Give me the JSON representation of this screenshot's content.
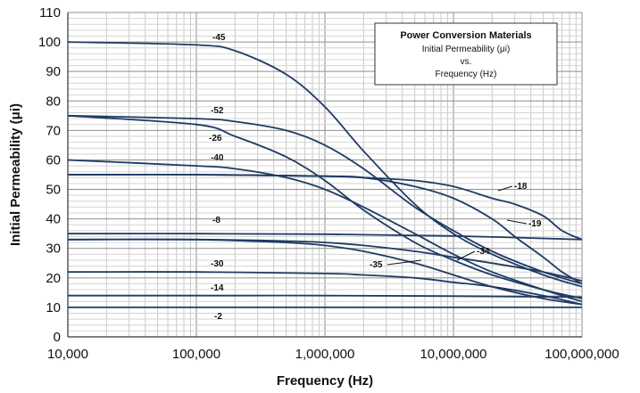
{
  "chart_data": {
    "type": "line",
    "title": "Power Conversion Materials",
    "subtitle_lines": [
      "Initial Permeability (μi)",
      "vs.",
      "Frequency (Hz)"
    ],
    "xlabel": "Frequency (Hz)",
    "ylabel": "Initial Permeability (μi)",
    "x_scale": "log",
    "xlim": [
      10000,
      100000000
    ],
    "ylim": [
      0,
      110
    ],
    "x_ticks": [
      10000,
      100000,
      1000000,
      10000000,
      100000000
    ],
    "x_tick_labels": [
      "10,000",
      "100,000",
      "1,000,000",
      "10,000,000",
      "100,000,000"
    ],
    "y_ticks": [
      0,
      10,
      20,
      30,
      40,
      50,
      60,
      70,
      80,
      90,
      100,
      110
    ],
    "y_tick_labels": [
      "0",
      "10",
      "20",
      "30",
      "40",
      "50",
      "60",
      "70",
      "80",
      "90",
      "100",
      "110"
    ],
    "grid": true,
    "legend": "top-right",
    "line_color": "#1f3b64",
    "series": [
      {
        "name": "-45",
        "x": [
          10000,
          100000,
          200000,
          500000,
          1000000,
          2000000,
          5000000,
          10000000,
          20000000,
          50000000,
          100000000
        ],
        "y": [
          100,
          99,
          97,
          89,
          78,
          63,
          45,
          35,
          28,
          21,
          17
        ]
      },
      {
        "name": "-52",
        "x": [
          10000,
          100000,
          200000,
          500000,
          1000000,
          2000000,
          5000000,
          10000000,
          20000000,
          50000000,
          100000000
        ],
        "y": [
          75,
          74,
          73,
          70,
          65,
          57,
          44,
          36,
          29,
          22,
          18
        ]
      },
      {
        "name": "-26",
        "x": [
          10000,
          100000,
          200000,
          500000,
          1000000,
          2000000,
          5000000,
          10000000,
          20000000,
          50000000,
          100000000
        ],
        "y": [
          75,
          72,
          68,
          61,
          53,
          43,
          32,
          26,
          21,
          16,
          13
        ]
      },
      {
        "name": "-40",
        "x": [
          10000,
          100000,
          200000,
          500000,
          1000000,
          2000000,
          5000000,
          10000000,
          20000000,
          50000000,
          100000000
        ],
        "y": [
          60,
          58,
          57,
          54,
          50,
          44,
          35,
          28,
          22,
          16,
          12
        ]
      },
      {
        "name": "-18",
        "x": [
          10000,
          100000,
          1000000,
          2000000,
          5000000,
          10000000,
          20000000,
          30000000,
          50000000,
          70000000,
          100000000
        ],
        "y": [
          55,
          55,
          54.5,
          54,
          53,
          51,
          47,
          45,
          41,
          36,
          33
        ]
      },
      {
        "name": "-19",
        "x": [
          10000,
          100000,
          1000000,
          2000000,
          5000000,
          10000000,
          20000000,
          30000000,
          50000000,
          70000000,
          100000000
        ],
        "y": [
          55,
          55,
          54.5,
          54,
          51,
          47,
          40,
          34,
          27,
          22,
          18
        ]
      },
      {
        "name": "-8",
        "x": [
          10000,
          100000,
          1000000,
          10000000,
          100000000
        ],
        "y": [
          35,
          35,
          34.8,
          34.2,
          33
        ]
      },
      {
        "name": "-34",
        "x": [
          10000,
          100000,
          500000,
          1000000,
          2000000,
          5000000,
          10000000,
          20000000,
          50000000,
          100000000
        ],
        "y": [
          33,
          33,
          32.5,
          32,
          31,
          29,
          27,
          25,
          22,
          19
        ]
      },
      {
        "name": "-35",
        "x": [
          10000,
          100000,
          500000,
          1000000,
          2000000,
          5000000,
          10000000,
          20000000,
          50000000,
          100000000
        ],
        "y": [
          33,
          33,
          32,
          31,
          29,
          25,
          21,
          17,
          13,
          11
        ]
      },
      {
        "name": "-30",
        "x": [
          10000,
          100000,
          1000000,
          2000000,
          5000000,
          10000000,
          20000000,
          50000000,
          100000000
        ],
        "y": [
          22,
          22,
          21.5,
          21,
          20,
          18.5,
          17,
          14,
          11
        ]
      },
      {
        "name": "-14",
        "x": [
          10000,
          100000,
          1000000,
          10000000,
          100000000
        ],
        "y": [
          14,
          14,
          14,
          13.8,
          13.5
        ]
      },
      {
        "name": "-2",
        "x": [
          10000,
          100000,
          1000000,
          10000000,
          100000000
        ],
        "y": [
          10,
          10,
          10,
          10,
          10
        ]
      }
    ]
  }
}
